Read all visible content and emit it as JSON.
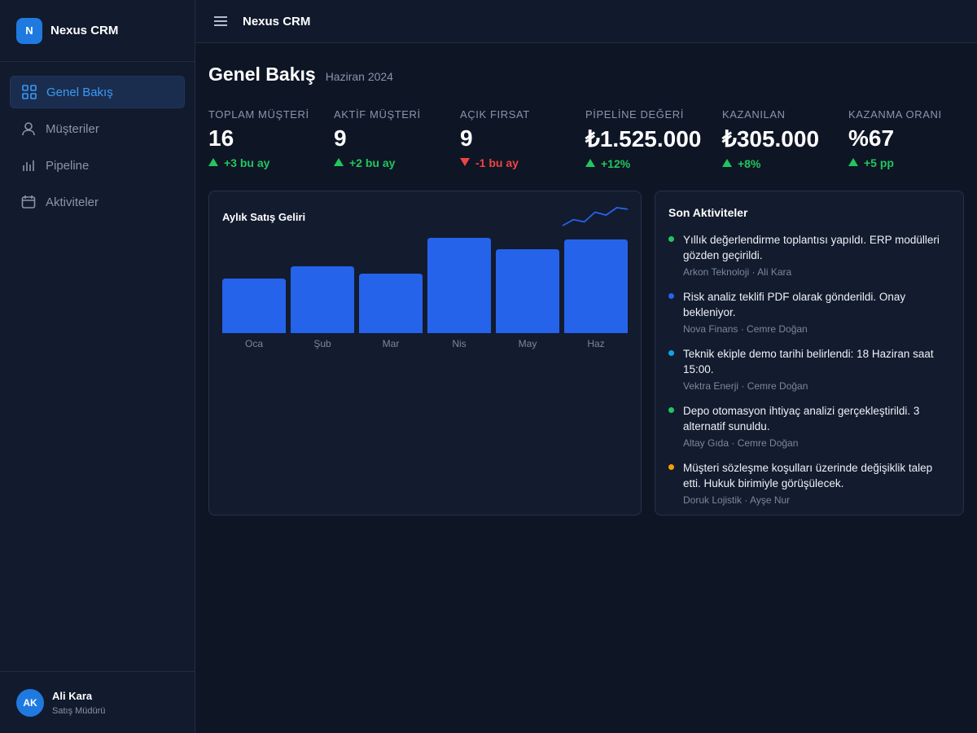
{
  "sidebar": {
    "logo": "N",
    "brand": "Nexus CRM",
    "nav": [
      "Genel Bakış",
      "Müşteriler",
      "Pipeline",
      "Aktiviteler"
    ],
    "user": {
      "initials": "AK",
      "name": "Ali Kara",
      "role": "Satış Müdürü"
    }
  },
  "topbar": {
    "title": "Nexus CRM"
  },
  "header": {
    "title": "Genel Bakış",
    "subtitle": "Haziran 2024"
  },
  "kpis": [
    {
      "label": "TOPLAM MÜŞTERİ",
      "value": "16",
      "delta": "+3 bu ay",
      "trend": "up"
    },
    {
      "label": "AKTİF MÜŞTERİ",
      "value": "9",
      "delta": "+2 bu ay",
      "trend": "up"
    },
    {
      "label": "AÇIK FIRSAT",
      "value": "9",
      "delta": "-1 bu ay",
      "trend": "down"
    },
    {
      "label": "PİPELİNE DEĞERİ",
      "value": "₺1.525.000",
      "delta": "+12%",
      "trend": "up"
    },
    {
      "label": "KAZANILAN",
      "value": "₺305.000",
      "delta": "+8%",
      "trend": "up"
    },
    {
      "label": "KAZANMA ORANI",
      "value": "%67",
      "delta": "+5 pp",
      "trend": "up"
    }
  ],
  "chart_data": {
    "type": "bar",
    "title": "Aylık Satış Geliri",
    "categories": [
      "Oca",
      "Şub",
      "Mar",
      "Nis",
      "May",
      "Haz"
    ],
    "values": [
      67,
      82,
      73,
      117,
      103,
      115
    ],
    "color": "#2563eb",
    "sparkline": [
      0,
      8,
      5,
      18,
      14,
      24,
      22
    ]
  },
  "activities": {
    "title": "Son Aktiviteler",
    "items": [
      {
        "text": "Yıllık değerlendirme toplantısı yapıldı. ERP modülleri gözden geçirildi.",
        "meta": "Arkon Teknoloji · Ali Kara",
        "color": "#22c55e"
      },
      {
        "text": "Risk analiz teklifi PDF olarak gönderildi. Onay bekleniyor.",
        "meta": "Nova Finans · Cemre Doğan",
        "color": "#2563eb"
      },
      {
        "text": "Teknik ekiple demo tarihi belirlendi: 18 Haziran saat 15:00.",
        "meta": "Vektra Enerji · Cemre Doğan",
        "color": "#0ea5e9"
      },
      {
        "text": "Depo otomasyon ihtiyaç analizi gerçekleştirildi. 3 alternatif sunuldu.",
        "meta": "Altay Gıda · Cemre Doğan",
        "color": "#22c55e"
      },
      {
        "text": "Müşteri sözleşme koşulları üzerinde değişiklik talep etti. Hukuk birimiyle görüşülecek.",
        "meta": "Doruk Lojistik · Ayşe Nur",
        "color": "#f59e0b"
      }
    ]
  }
}
